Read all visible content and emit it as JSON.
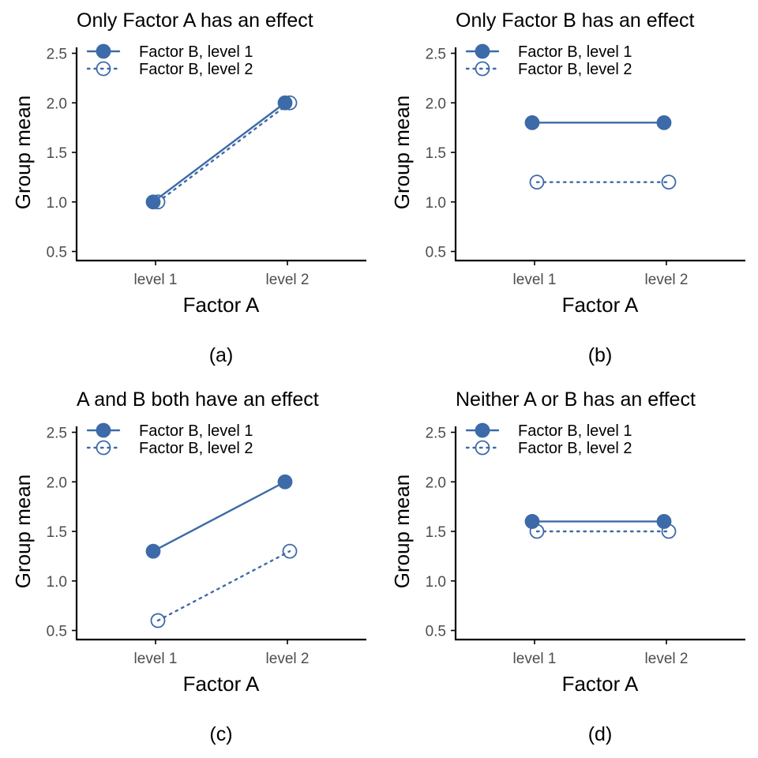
{
  "colors": {
    "series": "#3d6aa8",
    "axis": "#000000",
    "tick_label": "#4d4d4d"
  },
  "chart_data": [
    {
      "type": "line",
      "title": "Only Factor A has an effect",
      "caption": "(a)",
      "xlabel": "Factor A",
      "ylabel": "Group mean",
      "categories": [
        "level 1",
        "level 2"
      ],
      "ylim": [
        0.45,
        2.6
      ],
      "yticks": [
        "0.5",
        "1.0",
        "1.5",
        "2.0",
        "2.5"
      ],
      "legend_position": "top-left",
      "grid": false,
      "series": [
        {
          "name": "Factor B, level 1",
          "values": [
            1.0,
            2.0
          ],
          "marker": "filled-circle",
          "line": "solid"
        },
        {
          "name": "Factor B, level 2",
          "values": [
            1.0,
            2.0
          ],
          "marker": "open-circle",
          "line": "dotted"
        }
      ]
    },
    {
      "type": "line",
      "title": "Only Factor B has an effect",
      "caption": "(b)",
      "xlabel": "Factor A",
      "ylabel": "Group mean",
      "categories": [
        "level 1",
        "level 2"
      ],
      "ylim": [
        0.45,
        2.6
      ],
      "yticks": [
        "0.5",
        "1.0",
        "1.5",
        "2.0",
        "2.5"
      ],
      "legend_position": "top-left",
      "grid": false,
      "series": [
        {
          "name": "Factor B, level 1",
          "values": [
            1.8,
            1.8
          ],
          "marker": "filled-circle",
          "line": "solid"
        },
        {
          "name": "Factor B, level 2",
          "values": [
            1.2,
            1.2
          ],
          "marker": "open-circle",
          "line": "dotted"
        }
      ]
    },
    {
      "type": "line",
      "title": "A and B both have an effect",
      "caption": "(c)",
      "xlabel": "Factor A",
      "ylabel": "Group mean",
      "categories": [
        "level 1",
        "level 2"
      ],
      "ylim": [
        0.45,
        2.6
      ],
      "yticks": [
        "0.5",
        "1.0",
        "1.5",
        "2.0",
        "2.5"
      ],
      "legend_position": "top-left",
      "grid": false,
      "series": [
        {
          "name": "Factor B, level 1",
          "values": [
            1.3,
            2.0
          ],
          "marker": "filled-circle",
          "line": "solid"
        },
        {
          "name": "Factor B, level 2",
          "values": [
            0.6,
            1.3
          ],
          "marker": "open-circle",
          "line": "dotted"
        }
      ]
    },
    {
      "type": "line",
      "title": "Neither A or B has an effect",
      "caption": "(d)",
      "xlabel": "Factor A",
      "ylabel": "Group mean",
      "categories": [
        "level 1",
        "level 2"
      ],
      "ylim": [
        0.45,
        2.6
      ],
      "yticks": [
        "0.5",
        "1.0",
        "1.5",
        "2.0",
        "2.5"
      ],
      "legend_position": "top-left",
      "grid": false,
      "series": [
        {
          "name": "Factor B, level 1",
          "values": [
            1.6,
            1.6
          ],
          "marker": "filled-circle",
          "line": "solid"
        },
        {
          "name": "Factor B, level 2",
          "values": [
            1.5,
            1.5
          ],
          "marker": "open-circle",
          "line": "dotted"
        }
      ]
    }
  ]
}
